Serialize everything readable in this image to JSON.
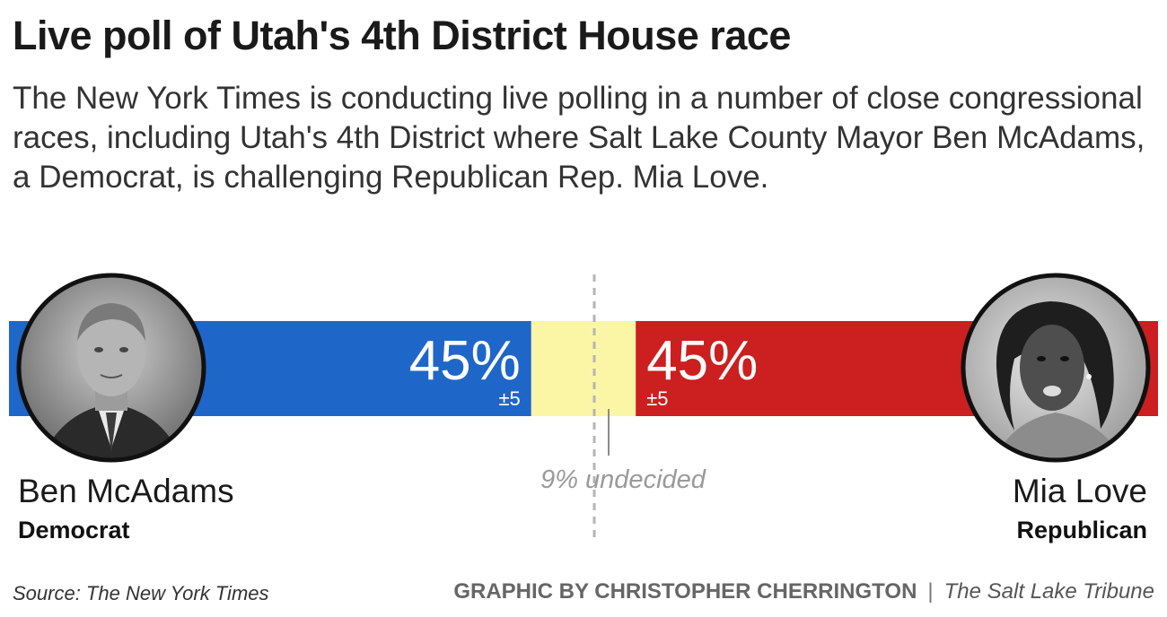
{
  "title": "Live poll of Utah's 4th District House race",
  "subtitle": "The New York Times is conducting live polling in a number of close congressional races, including Utah's 4th District where Salt Lake County Mayor Ben McAdams, a Democrat, is challenging Republican Rep. Mia Love.",
  "chart_data": {
    "type": "bar",
    "orientation": "horizontal-stacked",
    "total": 100,
    "segments": [
      {
        "key": "mcadams",
        "value": 45,
        "label": "45%",
        "moe": "±5",
        "color": "#1f66c9"
      },
      {
        "key": "undecided",
        "value": 9,
        "label": "9% undecided",
        "color": "#fbf5a6"
      },
      {
        "key": "love",
        "value": 45,
        "label": "45%",
        "moe": "±5",
        "color": "#cc1f1f"
      }
    ]
  },
  "candidates": {
    "left": {
      "name": "Ben McAdams",
      "party": "Democrat"
    },
    "right": {
      "name": "Mia Love",
      "party": "Republican"
    }
  },
  "footer": {
    "source": "Source: The New York Times",
    "byline": "GRAPHIC BY CHRISTOPHER CHERRINGTON",
    "separator": "|",
    "publication": "The Salt Lake Tribune"
  }
}
